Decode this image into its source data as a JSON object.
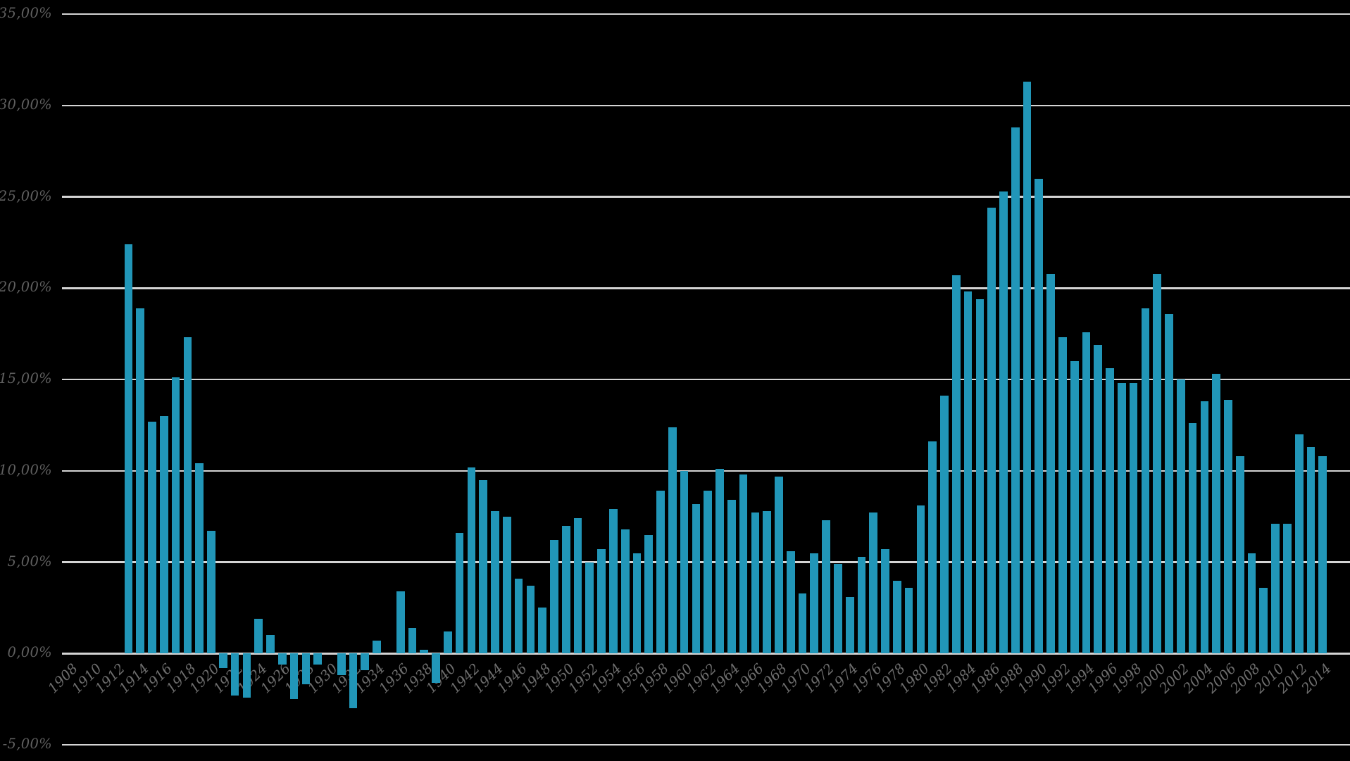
{
  "chart_data": {
    "type": "bar",
    "title": "",
    "xlabel": "",
    "ylabel": "",
    "grid": true,
    "legend_position": "none",
    "ylim": [
      -5,
      35
    ],
    "gridline_step": 5,
    "y_tick_labels": [
      "35,00%",
      "30,00%",
      "25,00%",
      "20,00%",
      "15,00%",
      "10,00%",
      "5,00%",
      "0,00%",
      "-5,00%"
    ],
    "x_tick_labels": [
      "1908",
      "1910",
      "1912",
      "1914",
      "1916",
      "1918",
      "1920",
      "1922",
      "1924",
      "1926",
      "1928",
      "1930",
      "1932",
      "1934",
      "1936",
      "1938",
      "1940",
      "1942",
      "1944",
      "1946",
      "1948",
      "1950",
      "1952",
      "1954",
      "1956",
      "1958",
      "1960",
      "1962",
      "1964",
      "1966",
      "1968",
      "1970",
      "1972",
      "1974",
      "1976",
      "1978",
      "1980",
      "1982",
      "1984",
      "1986",
      "1988",
      "1990",
      "1992",
      "1994",
      "1996",
      "1998",
      "2000",
      "2002",
      "2004",
      "2006",
      "2008",
      "2010",
      "2012",
      "2014"
    ],
    "x_axis_start_year": 1908,
    "x_axis_end_year": 2014,
    "first_data_year": 1913,
    "years": [
      1913,
      1914,
      1915,
      1916,
      1917,
      1918,
      1919,
      1920,
      1921,
      1922,
      1923,
      1924,
      1925,
      1926,
      1927,
      1928,
      1929,
      1930,
      1931,
      1932,
      1933,
      1934,
      1935,
      1936,
      1937,
      1938,
      1939,
      1940,
      1941,
      1942,
      1943,
      1944,
      1945,
      1946,
      1947,
      1948,
      1949,
      1950,
      1951,
      1952,
      1953,
      1954,
      1955,
      1956,
      1957,
      1958,
      1959,
      1960,
      1961,
      1962,
      1963,
      1964,
      1965,
      1966,
      1967,
      1968,
      1969,
      1970,
      1971,
      1972,
      1973,
      1974,
      1975,
      1976,
      1977,
      1978,
      1979,
      1980,
      1981,
      1982,
      1983,
      1984,
      1985,
      1986,
      1987,
      1988,
      1989,
      1990,
      1991,
      1992,
      1993,
      1994,
      1995,
      1996,
      1997,
      1998,
      1999,
      2000,
      2001,
      2002,
      2003,
      2004,
      2005,
      2006,
      2007,
      2008,
      2009,
      2010,
      2011,
      2012,
      2013,
      2014
    ],
    "values": [
      22.4,
      18.9,
      12.7,
      13.0,
      15.1,
      17.3,
      10.4,
      6.7,
      -0.8,
      -2.3,
      -2.4,
      1.9,
      1.0,
      -0.6,
      -2.5,
      -1.7,
      -0.6,
      0,
      -1.2,
      -3.0,
      -0.9,
      0.7,
      0,
      3.4,
      1.4,
      0.2,
      -1.6,
      1.2,
      6.6,
      10.2,
      9.5,
      7.8,
      7.5,
      4.1,
      3.7,
      2.5,
      6.2,
      7.0,
      7.4,
      5.0,
      5.7,
      7.9,
      6.8,
      5.5,
      6.5,
      8.9,
      12.4,
      10.0,
      8.2,
      8.9,
      10.1,
      8.4,
      9.8,
      7.7,
      7.8,
      9.7,
      5.6,
      3.3,
      5.5,
      7.3,
      4.9,
      3.1,
      5.3,
      7.7,
      5.7,
      4.0,
      3.6,
      8.1,
      11.6,
      14.1,
      20.7,
      19.8,
      19.4,
      24.4,
      25.3,
      28.8,
      31.3,
      26.0,
      20.8,
      17.3,
      16.0,
      17.6,
      16.9,
      15.6,
      14.8,
      14.8,
      18.9,
      20.8,
      18.6,
      15.0,
      12.6,
      13.8,
      15.3,
      13.9,
      10.8,
      5.5,
      3.6,
      7.1,
      7.1,
      12.0,
      11.3,
      10.8
    ],
    "colors": {
      "background": "#000000",
      "bar_fill": "#2196b8",
      "gridline": "#d4d4d4",
      "y_label_text": "#5f5f5f",
      "x_label_text": "#6e6e6e"
    }
  }
}
